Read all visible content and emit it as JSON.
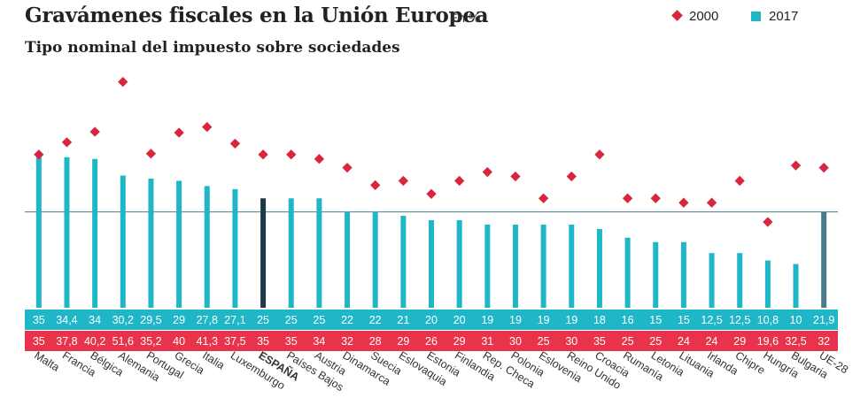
{
  "header": {
    "title": "Gravámenes fiscales en la Unión Europea",
    "unit": "En %",
    "subtitle": "Tipo nominal del impuesto sobre sociedades"
  },
  "legend": {
    "series_2000": "2000",
    "series_2017": "2017"
  },
  "colors": {
    "bar_2017": "#1fb7c8",
    "bar_highlight": "#1e3a4a",
    "bar_ue": "#4b7a8c",
    "marker_2000": "#d7263d",
    "band_2017": "#1fb7c8",
    "band_2000": "#e8334a",
    "reference_line": "#4b7a8c"
  },
  "chart_data": {
    "type": "bar",
    "title": "Gravámenes fiscales en la Unión Europea",
    "subtitle": "Tipo nominal del impuesto sobre sociedades",
    "ylabel": "En %",
    "xlabel": "",
    "ylim": [
      0,
      60
    ],
    "reference_line": 21.9,
    "highlight": "ESPAÑA",
    "categories": [
      "Malta",
      "Francia",
      "Bélgica",
      "Alemania",
      "Portugal",
      "Grecia",
      "Italia",
      "Luxemburgo",
      "ESPAÑA",
      "Países Bajos",
      "Austria",
      "Dinamarca",
      "Suecia",
      "Eslovaquia",
      "Estonia",
      "Finlandia",
      "Rep. Checa",
      "Polonia",
      "Eslovenia",
      "Reino Unido",
      "Croacia",
      "Rumanía",
      "Letonia",
      "Lituania",
      "Irlanda",
      "Chipre",
      "Hungría",
      "Bulgaria",
      "UE-28"
    ],
    "series": [
      {
        "name": "2017",
        "type": "bar",
        "values": [
          35,
          34.4,
          34,
          30.2,
          29.5,
          29,
          27.8,
          27.1,
          25,
          25,
          25,
          22,
          22,
          21,
          20,
          20,
          19,
          19,
          19,
          19,
          18,
          16,
          15,
          15,
          12.5,
          12.5,
          10.8,
          10,
          21.9
        ],
        "labels": [
          "35",
          "34,4",
          "34",
          "30,2",
          "29,5",
          "29",
          "27,8",
          "27,1",
          "25",
          "25",
          "25",
          "22",
          "22",
          "21",
          "20",
          "20",
          "19",
          "19",
          "19",
          "19",
          "18",
          "16",
          "15",
          "15",
          "12,5",
          "12,5",
          "10,8",
          "10",
          "21,9"
        ]
      },
      {
        "name": "2000",
        "type": "marker",
        "values": [
          35,
          37.8,
          40.2,
          51.6,
          35.2,
          40,
          41.3,
          37.5,
          35,
          35,
          34,
          32,
          28,
          29,
          26,
          29,
          31,
          30,
          25,
          30,
          35,
          25,
          25,
          24,
          24,
          29,
          19.6,
          32.5,
          32
        ],
        "labels": [
          "35",
          "37,8",
          "40,2",
          "51,6",
          "35,2",
          "40",
          "41,3",
          "37,5",
          "35",
          "35",
          "34",
          "32",
          "28",
          "29",
          "26",
          "29",
          "31",
          "30",
          "25",
          "30",
          "35",
          "25",
          "25",
          "24",
          "24",
          "29",
          "19,6",
          "32,5",
          "32"
        ]
      }
    ]
  }
}
